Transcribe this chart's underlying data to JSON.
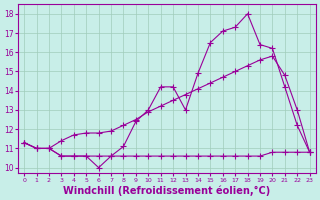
{
  "background_color": "#c8eee8",
  "grid_color": "#a0ccbb",
  "line_color": "#990099",
  "xlabel": "Windchill (Refroidissement éolien,°C)",
  "xlabel_fontsize": 7,
  "yticks": [
    10,
    11,
    12,
    13,
    14,
    15,
    16,
    17,
    18
  ],
  "ylim": [
    9.7,
    18.5
  ],
  "xlim": [
    -0.5,
    23.5
  ],
  "line_jagged": [
    11.3,
    11.0,
    11.0,
    10.6,
    10.6,
    10.6,
    10.0,
    10.6,
    11.1,
    12.4,
    13.0,
    14.2,
    14.2,
    13.0,
    14.9,
    16.5,
    17.1,
    17.3,
    18.0,
    16.4,
    16.2,
    14.2,
    12.2,
    10.8
  ],
  "line_flat": [
    11.3,
    11.0,
    11.0,
    10.6,
    10.6,
    10.6,
    10.6,
    10.6,
    10.6,
    10.6,
    10.6,
    10.6,
    10.6,
    10.6,
    10.6,
    10.6,
    10.6,
    10.6,
    10.6,
    10.6,
    10.8,
    10.8,
    10.8,
    10.8
  ],
  "line_smooth": [
    11.3,
    11.0,
    11.0,
    11.4,
    11.7,
    11.8,
    11.8,
    11.9,
    12.2,
    12.5,
    12.9,
    13.2,
    13.5,
    13.8,
    14.1,
    14.4,
    14.7,
    15.0,
    15.3,
    15.6,
    15.8,
    14.8,
    13.0,
    10.8
  ]
}
